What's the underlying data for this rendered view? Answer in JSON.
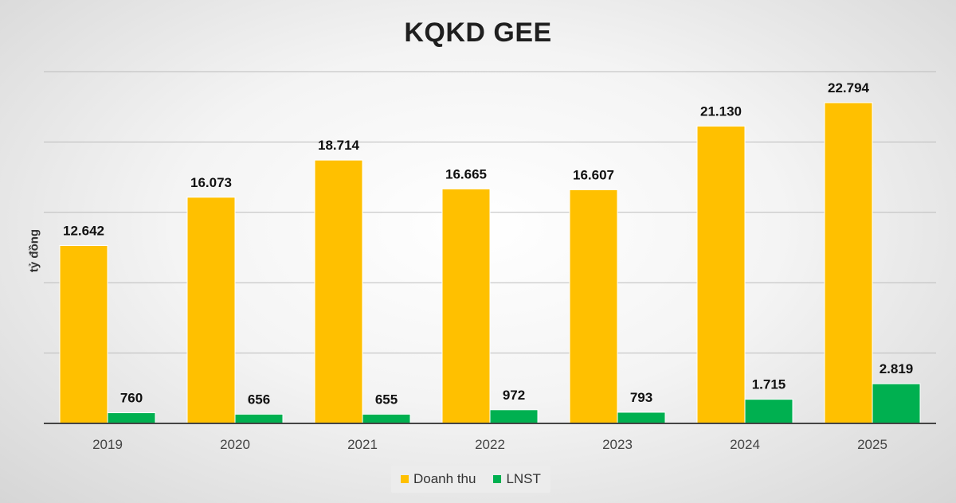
{
  "chart_data": {
    "type": "bar",
    "title": "KQKD GEE",
    "xlabel": "",
    "ylabel": "tỷ đồng",
    "categories": [
      "2019",
      "2020",
      "2021",
      "2022",
      "2023",
      "2024",
      "2025"
    ],
    "series": [
      {
        "name": "Doanh thu",
        "color": "#FFC000",
        "values": [
          12642,
          16073,
          18714,
          16665,
          16607,
          21130,
          22794
        ],
        "labels": [
          "12.642",
          "16.073",
          "18.714",
          "16.665",
          "16.607",
          "21.130",
          "22.794"
        ]
      },
      {
        "name": "LNST",
        "color": "#00B050",
        "values": [
          760,
          656,
          655,
          972,
          793,
          1715,
          2819
        ],
        "labels": [
          "760",
          "656",
          "655",
          "972",
          "793",
          "1.715",
          "2.819"
        ]
      }
    ],
    "ylim": [
      0,
      25000
    ],
    "gridlines": [
      5000,
      10000,
      15000,
      20000,
      25000
    ],
    "grid": true,
    "legend": "bottom"
  }
}
